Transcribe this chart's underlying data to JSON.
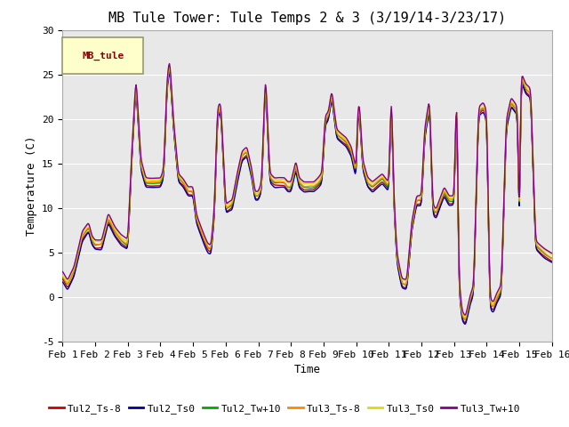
{
  "title": "MB Tule Tower: Tule Temps 2 & 3 (3/19/14-3/23/17)",
  "xlabel": "Time",
  "ylabel": "Temperature (C)",
  "ylim": [
    -5,
    30
  ],
  "xlim": [
    0,
    15
  ],
  "xtick_labels": [
    "Feb 1",
    "Feb 2",
    "Feb 3",
    "Feb 4",
    "Feb 5",
    "Feb 6",
    "Feb 7",
    "Feb 8",
    "Feb 9",
    "Feb 10",
    "Feb 11",
    "Feb 12",
    "Feb 13",
    "Feb 14",
    "Feb 15",
    "Feb 16"
  ],
  "xtick_positions": [
    0,
    1,
    2,
    3,
    4,
    5,
    6,
    7,
    8,
    9,
    10,
    11,
    12,
    13,
    14,
    15
  ],
  "ytick_labels": [
    "-5",
    "0",
    "5",
    "10",
    "15",
    "20",
    "25",
    "30"
  ],
  "ytick_positions": [
    -5,
    0,
    5,
    10,
    15,
    20,
    25,
    30
  ],
  "series": [
    {
      "label": "Tul2_Ts-8",
      "color": "#cc0000"
    },
    {
      "label": "Tul2_Ts0",
      "color": "#000099"
    },
    {
      "label": "Tul2_Tw+10",
      "color": "#00aa00"
    },
    {
      "label": "Tul3_Ts-8",
      "color": "#ff8800"
    },
    {
      "label": "Tul3_Ts0",
      "color": "#dddd00"
    },
    {
      "label": "Tul3_Tw+10",
      "color": "#880088"
    }
  ],
  "legend_label": "MB_tule",
  "legend_box_facecolor": "#ffffcc",
  "legend_box_edgecolor": "#999966",
  "legend_text_color": "#880000",
  "plot_bg_color": "#e8e8e8",
  "grid_color": "#ffffff",
  "title_fontsize": 11,
  "axis_label_fontsize": 9,
  "tick_fontsize": 8,
  "legend_fontsize": 8,
  "linewidth": 1.0,
  "control_points": [
    [
      0.0,
      2.0
    ],
    [
      0.15,
      1.0
    ],
    [
      0.35,
      2.5
    ],
    [
      0.6,
      6.5
    ],
    [
      0.8,
      7.5
    ],
    [
      0.9,
      6.0
    ],
    [
      1.0,
      5.5
    ],
    [
      1.2,
      5.5
    ],
    [
      1.4,
      8.5
    ],
    [
      1.6,
      7.0
    ],
    [
      1.8,
      6.0
    ],
    [
      2.0,
      5.5
    ],
    [
      2.1,
      14.0
    ],
    [
      2.25,
      24.0
    ],
    [
      2.4,
      14.5
    ],
    [
      2.55,
      12.5
    ],
    [
      2.7,
      12.5
    ],
    [
      2.85,
      12.5
    ],
    [
      3.0,
      12.5
    ],
    [
      3.1,
      13.5
    ],
    [
      3.2,
      23.5
    ],
    [
      3.28,
      26.0
    ],
    [
      3.4,
      19.0
    ],
    [
      3.55,
      13.0
    ],
    [
      3.7,
      12.5
    ],
    [
      3.85,
      11.5
    ],
    [
      4.0,
      11.5
    ],
    [
      4.1,
      8.5
    ],
    [
      4.2,
      7.5
    ],
    [
      4.35,
      6.0
    ],
    [
      4.45,
      5.2
    ],
    [
      4.55,
      5.0
    ],
    [
      4.65,
      9.0
    ],
    [
      4.75,
      20.5
    ],
    [
      4.85,
      21.0
    ],
    [
      5.0,
      9.5
    ],
    [
      5.1,
      9.8
    ],
    [
      5.2,
      10.0
    ],
    [
      5.35,
      13.0
    ],
    [
      5.5,
      15.5
    ],
    [
      5.65,
      16.0
    ],
    [
      5.8,
      13.5
    ],
    [
      5.9,
      11.0
    ],
    [
      6.0,
      11.0
    ],
    [
      6.1,
      12.0
    ],
    [
      6.22,
      24.5
    ],
    [
      6.35,
      13.0
    ],
    [
      6.5,
      12.5
    ],
    [
      6.65,
      12.5
    ],
    [
      6.8,
      12.5
    ],
    [
      6.9,
      12.0
    ],
    [
      7.0,
      12.0
    ],
    [
      7.15,
      14.5
    ],
    [
      7.25,
      12.5
    ],
    [
      7.4,
      12.0
    ],
    [
      7.55,
      12.0
    ],
    [
      7.7,
      12.0
    ],
    [
      7.85,
      12.5
    ],
    [
      7.95,
      13.0
    ],
    [
      8.05,
      19.5
    ],
    [
      8.15,
      20.0
    ],
    [
      8.25,
      22.5
    ],
    [
      8.4,
      18.0
    ],
    [
      8.55,
      17.5
    ],
    [
      8.7,
      17.0
    ],
    [
      8.85,
      16.0
    ],
    [
      9.0,
      13.5
    ],
    [
      9.05,
      20.5
    ],
    [
      9.1,
      21.0
    ],
    [
      9.2,
      14.5
    ],
    [
      9.35,
      12.5
    ],
    [
      9.5,
      12.0
    ],
    [
      9.65,
      12.5
    ],
    [
      9.8,
      13.0
    ],
    [
      9.9,
      12.5
    ],
    [
      10.0,
      12.0
    ],
    [
      10.08,
      23.0
    ],
    [
      10.15,
      11.0
    ],
    [
      10.25,
      4.0
    ],
    [
      10.4,
      1.2
    ],
    [
      10.55,
      1.0
    ],
    [
      10.7,
      7.5
    ],
    [
      10.85,
      10.5
    ],
    [
      11.0,
      10.5
    ],
    [
      11.1,
      18.0
    ],
    [
      11.25,
      21.5
    ],
    [
      11.35,
      9.5
    ],
    [
      11.45,
      9.0
    ],
    [
      11.55,
      10.0
    ],
    [
      11.7,
      11.5
    ],
    [
      11.85,
      10.5
    ],
    [
      12.0,
      10.5
    ],
    [
      12.08,
      23.5
    ],
    [
      12.15,
      1.0
    ],
    [
      12.25,
      -2.5
    ],
    [
      12.35,
      -3.0
    ],
    [
      12.5,
      -0.5
    ],
    [
      12.6,
      0.5
    ],
    [
      12.75,
      20.5
    ],
    [
      12.9,
      21.0
    ],
    [
      13.0,
      20.0
    ],
    [
      13.1,
      -1.0
    ],
    [
      13.2,
      -1.5
    ],
    [
      13.3,
      -0.5
    ],
    [
      13.45,
      0.5
    ],
    [
      13.6,
      19.0
    ],
    [
      13.75,
      21.5
    ],
    [
      13.85,
      21.0
    ],
    [
      13.95,
      20.5
    ],
    [
      14.0,
      5.0
    ],
    [
      14.05,
      24.5
    ],
    [
      14.2,
      23.0
    ],
    [
      14.35,
      22.5
    ],
    [
      14.5,
      5.5
    ],
    [
      14.65,
      5.0
    ],
    [
      14.8,
      4.5
    ],
    [
      15.0,
      4.0
    ]
  ]
}
